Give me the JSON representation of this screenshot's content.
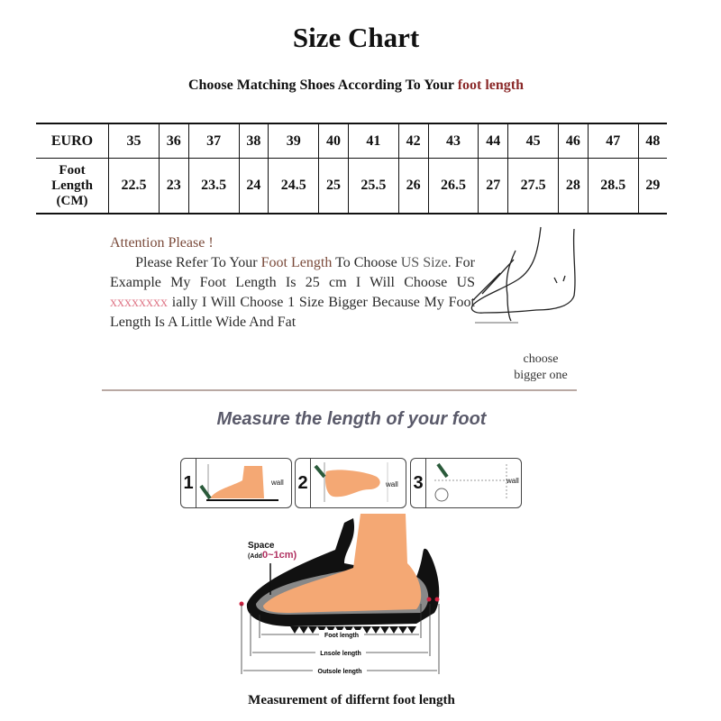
{
  "title": "Size Chart",
  "subtitle": {
    "prefix": "Choose Matching Shoes According To Your",
    "accent": "foot length"
  },
  "table": {
    "row_headers": {
      "euro": "EURO",
      "foot": "Foot",
      "length": "Length",
      "unit": "(CM)"
    },
    "euro": [
      "35",
      "36",
      "37",
      "38",
      "39",
      "40",
      "41",
      "42",
      "43",
      "44",
      "45",
      "46",
      "47",
      "48"
    ],
    "foot_length_cm": [
      "22.5",
      "23",
      "23.5",
      "24",
      "24.5",
      "25",
      "25.5",
      "26",
      "26.5",
      "27",
      "27.5",
      "28",
      "28.5",
      "29"
    ]
  },
  "attention": {
    "heading": "Attention Please !",
    "p1": "Please Refer To Your",
    "p2": "Foot Length",
    "p3": "To Choose",
    "p4": "US Size.",
    "p5": "For Example My Foot Length Is 25 cm I Will Choose US",
    "p6": "xxxxxxxx",
    "p7": "ially I Will Choose 1 Size Bigger Because My Foot Length Is A Little Wide And Fat"
  },
  "choose_note": {
    "line1": "choose",
    "line2": "bigger one"
  },
  "measure_heading": "Measure the length of your foot",
  "steps": [
    {
      "num": "1",
      "wall": "wall"
    },
    {
      "num": "2",
      "wall": "wall"
    },
    {
      "num": "3",
      "wall": "wall"
    }
  ],
  "diagram": {
    "space": "Space",
    "add": "(Add",
    "range": "0~1cm)",
    "foot_length": "Foot length",
    "insole_length": "Lnsole length",
    "outsole_length": "Outsole length"
  },
  "caption": "Measurement of differnt foot length",
  "colors": {
    "accent": "#8b2a2a",
    "skin": "#f4a874",
    "highlight": "#e07a8a"
  }
}
